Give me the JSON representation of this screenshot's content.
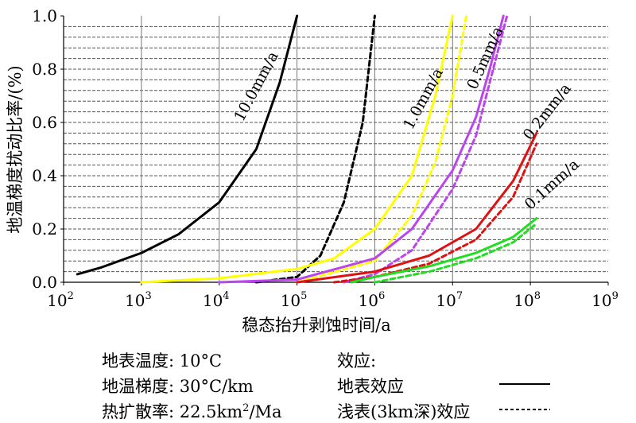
{
  "chart_data": {
    "type": "line",
    "title": "",
    "xlabel": "稳态抬升剥蚀时间/a",
    "ylabel": "地温梯度扰动比率/(%)",
    "xscale": "log",
    "xlim": [
      100,
      1000000000
    ],
    "ylim": [
      0,
      1.0
    ],
    "x_ticks": [
      {
        "base": "10",
        "exp": "2"
      },
      {
        "base": "10",
        "exp": "3"
      },
      {
        "base": "10",
        "exp": "4"
      },
      {
        "base": "10",
        "exp": "5"
      },
      {
        "base": "10",
        "exp": "6"
      },
      {
        "base": "10",
        "exp": "7"
      },
      {
        "base": "10",
        "exp": "8"
      },
      {
        "base": "10",
        "exp": "9"
      }
    ],
    "y_ticks": [
      "0.0",
      "0.2",
      "0.4",
      "0.6",
      "0.8",
      "1.0"
    ],
    "grid": "horizontal dashed",
    "series": [
      {
        "name": "10.0mm/a",
        "effect": "surface",
        "color": "#000000",
        "style": "solid",
        "x": [
          150,
          300,
          1000,
          3000,
          10000,
          30000,
          60000,
          100000
        ],
        "y": [
          0.03,
          0.055,
          0.11,
          0.18,
          0.3,
          0.5,
          0.75,
          1.0
        ]
      },
      {
        "name": "10.0mm/a",
        "effect": "shallow",
        "color": "#000000",
        "style": "dashed",
        "x": [
          30000,
          100000,
          200000,
          400000,
          700000,
          1000000
        ],
        "y": [
          0.0,
          0.02,
          0.1,
          0.3,
          0.6,
          1.0
        ]
      },
      {
        "name": "1.0mm/a",
        "effect": "surface",
        "color": "#ffff00",
        "style": "solid",
        "x": [
          1000,
          10000,
          100000,
          300000,
          1000000,
          3000000,
          6000000,
          10000000
        ],
        "y": [
          0.0,
          0.015,
          0.05,
          0.09,
          0.2,
          0.4,
          0.7,
          1.0
        ]
      },
      {
        "name": "1.0mm/a",
        "effect": "shallow",
        "color": "#ffff00",
        "style": "dashed",
        "x": [
          100000,
          1000000,
          3000000,
          6000000,
          10000000,
          15000000
        ],
        "y": [
          0.0,
          0.08,
          0.25,
          0.45,
          0.7,
          1.0
        ]
      },
      {
        "name": "0.5mm/a",
        "effect": "surface",
        "color": "#bb44ee",
        "style": "solid",
        "x": [
          10000,
          100000,
          1000000,
          3000000,
          10000000,
          20000000,
          30000000,
          45000000
        ],
        "y": [
          0.0,
          0.01,
          0.09,
          0.2,
          0.42,
          0.62,
          0.8,
          1.0
        ]
      },
      {
        "name": "0.5mm/a",
        "effect": "shallow",
        "color": "#bb44ee",
        "style": "dashed",
        "x": [
          400000,
          1000000,
          3000000,
          10000000,
          20000000,
          30000000,
          50000000
        ],
        "y": [
          0.0,
          0.03,
          0.12,
          0.35,
          0.55,
          0.75,
          1.0
        ]
      },
      {
        "name": "0.2mm/a",
        "effect": "surface",
        "color": "#dd1111",
        "style": "solid",
        "x": [
          100000,
          1000000,
          5000000,
          20000000,
          60000000,
          120000000
        ],
        "y": [
          0.0,
          0.04,
          0.1,
          0.2,
          0.38,
          0.56
        ]
      },
      {
        "name": "0.2mm/a",
        "effect": "shallow",
        "color": "#dd1111",
        "style": "dashed",
        "x": [
          300000,
          1000000,
          5000000,
          20000000,
          60000000,
          120000000
        ],
        "y": [
          0.0,
          0.02,
          0.07,
          0.16,
          0.32,
          0.52
        ]
      },
      {
        "name": "0.1mm/a",
        "effect": "surface",
        "color": "#22dd22",
        "style": "solid",
        "x": [
          500000,
          1000000,
          5000000,
          20000000,
          60000000,
          120000000
        ],
        "y": [
          0.0,
          0.02,
          0.06,
          0.11,
          0.17,
          0.24
        ]
      },
      {
        "name": "0.1mm/a",
        "effect": "shallow",
        "color": "#22dd22",
        "style": "dashed",
        "x": [
          1000000,
          5000000,
          20000000,
          60000000,
          120000000
        ],
        "y": [
          0.0,
          0.04,
          0.09,
          0.15,
          0.22
        ]
      }
    ]
  },
  "notes": {
    "surface_temp": "地表温度: 10°C",
    "gradient": "地温梯度: 30°C/km",
    "diffusivity_prefix": "热扩散率: 22.5km",
    "diffusivity_sup": "2",
    "diffusivity_suffix": "/Ma",
    "effect_header": "效应:",
    "surface_effect": "地表效应",
    "shallow_effect": "浅表(3km深)效应"
  }
}
